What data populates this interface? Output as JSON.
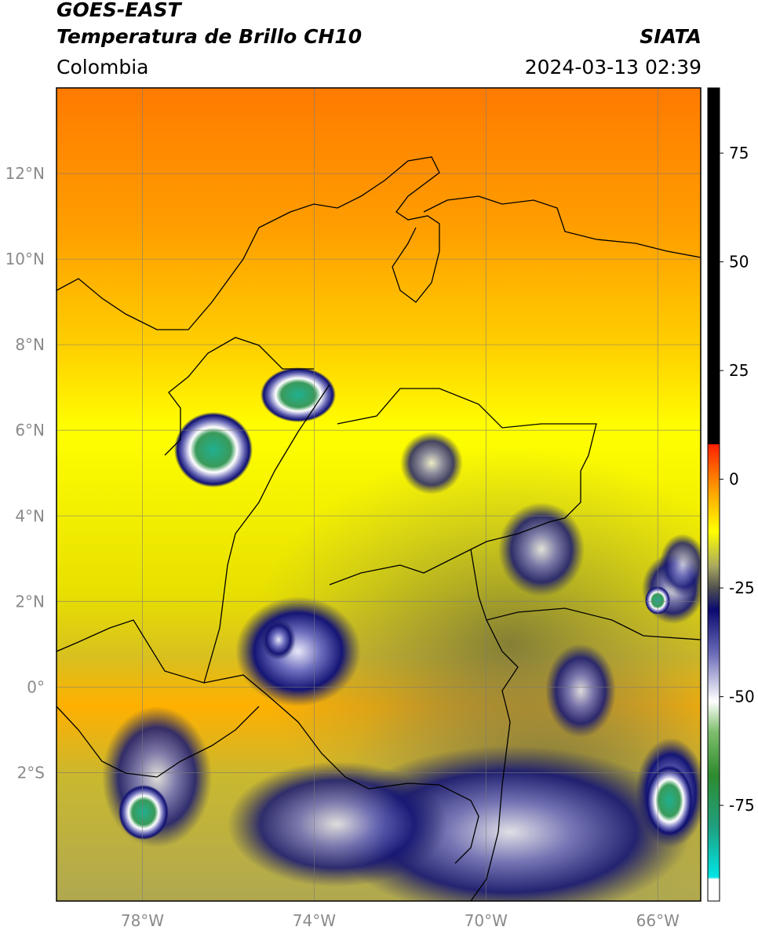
{
  "header": {
    "satellite": "GOES-EAST",
    "product": "Temperatura de Brillo CH10",
    "agency": "SIATA",
    "region": "Colombia",
    "datetime": "2024-03-13 02:39"
  },
  "map": {
    "lon_range": [
      -80,
      -65
    ],
    "lat_range": [
      -5.0,
      14.0
    ],
    "lat_ticks": [
      {
        "value": 12,
        "label": "12°N"
      },
      {
        "value": 10,
        "label": "10°N"
      },
      {
        "value": 8,
        "label": "8°N"
      },
      {
        "value": 6,
        "label": "6°N"
      },
      {
        "value": 4,
        "label": "4°N"
      },
      {
        "value": 2,
        "label": "2°N"
      },
      {
        "value": 0,
        "label": "0°"
      },
      {
        "value": -2,
        "label": "2°S"
      }
    ],
    "lon_ticks": [
      {
        "value": -78,
        "label": "78°W"
      },
      {
        "value": -74,
        "label": "74°W"
      },
      {
        "value": -70,
        "label": "70°W"
      },
      {
        "value": -66,
        "label": "66°W"
      }
    ],
    "gridlines": true
  },
  "colorbar": {
    "range": [
      -97,
      90
    ],
    "ticks": [
      {
        "value": 75,
        "label": "75"
      },
      {
        "value": 50,
        "label": "50"
      },
      {
        "value": 25,
        "label": "25"
      },
      {
        "value": 0,
        "label": "0"
      },
      {
        "value": -25,
        "label": "-25"
      },
      {
        "value": -50,
        "label": "-50"
      },
      {
        "value": -75,
        "label": "-75"
      }
    ],
    "stops": [
      {
        "value": -97,
        "color": "#ffffff"
      },
      {
        "value": -92,
        "color": "#ffffff"
      },
      {
        "value": -91.5,
        "color": "#00e5e5"
      },
      {
        "value": -80,
        "color": "#1fa080"
      },
      {
        "value": -68,
        "color": "#2e8b2e"
      },
      {
        "value": -58,
        "color": "#7fbf6f"
      },
      {
        "value": -51,
        "color": "#ffffff"
      },
      {
        "value": -40,
        "color": "#6a6ab8"
      },
      {
        "value": -30,
        "color": "#0a0a70"
      },
      {
        "value": -25,
        "color": "#505050"
      },
      {
        "value": -20,
        "color": "#a8a860"
      },
      {
        "value": -12,
        "color": "#ffff00"
      },
      {
        "value": -3,
        "color": "#ffa500"
      },
      {
        "value": 8,
        "color": "#ff2000"
      },
      {
        "value": 8.1,
        "color": "#000000"
      },
      {
        "value": 90,
        "color": "#000000"
      }
    ]
  }
}
